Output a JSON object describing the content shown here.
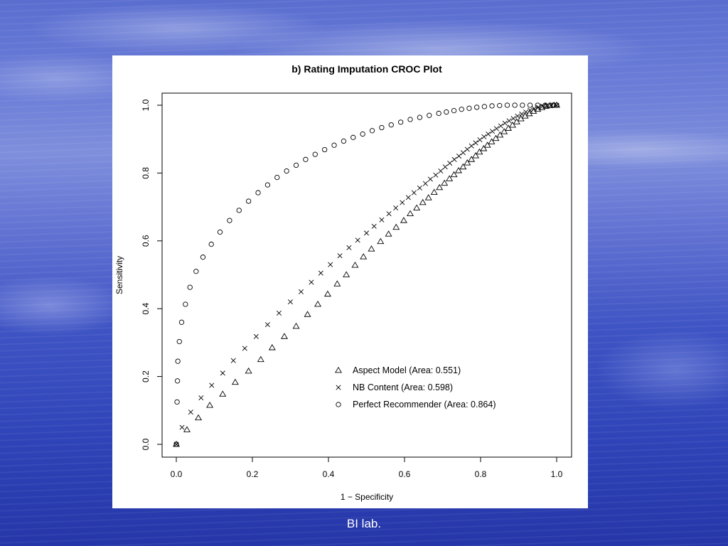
{
  "caption": "BI lab.",
  "colors": {
    "ink": "#000000",
    "panel": "#ffffff"
  },
  "chart_data": {
    "type": "scatter",
    "title": "b) Rating Imputation CROC Plot",
    "xlabel": "1 − Specificity",
    "ylabel": "Sensitivity",
    "xlim": [
      0,
      1
    ],
    "ylim": [
      0,
      1
    ],
    "x_ticks": [
      "0.0",
      "0.2",
      "0.4",
      "0.6",
      "0.8",
      "1.0"
    ],
    "y_ticks": [
      "0.0",
      "0.2",
      "0.4",
      "0.6",
      "0.8",
      "1.0"
    ],
    "grid": false,
    "legend_position": "bottom-right",
    "series": [
      {
        "name": "Aspect Model (Area: 0.551)",
        "marker": "triangle",
        "points": [
          [
            0,
            0
          ],
          [
            0.028,
            0.043
          ],
          [
            0.058,
            0.078
          ],
          [
            0.088,
            0.115
          ],
          [
            0.122,
            0.148
          ],
          [
            0.155,
            0.183
          ],
          [
            0.19,
            0.216
          ],
          [
            0.222,
            0.25
          ],
          [
            0.252,
            0.285
          ],
          [
            0.284,
            0.318
          ],
          [
            0.315,
            0.348
          ],
          [
            0.345,
            0.383
          ],
          [
            0.372,
            0.413
          ],
          [
            0.398,
            0.443
          ],
          [
            0.423,
            0.473
          ],
          [
            0.447,
            0.5
          ],
          [
            0.47,
            0.528
          ],
          [
            0.492,
            0.553
          ],
          [
            0.513,
            0.576
          ],
          [
            0.537,
            0.598
          ],
          [
            0.558,
            0.62
          ],
          [
            0.578,
            0.64
          ],
          [
            0.598,
            0.66
          ],
          [
            0.615,
            0.68
          ],
          [
            0.632,
            0.697
          ],
          [
            0.648,
            0.713
          ],
          [
            0.663,
            0.727
          ],
          [
            0.678,
            0.743
          ],
          [
            0.692,
            0.757
          ],
          [
            0.705,
            0.77
          ],
          [
            0.718,
            0.783
          ],
          [
            0.73,
            0.795
          ],
          [
            0.742,
            0.807
          ],
          [
            0.754,
            0.818
          ],
          [
            0.765,
            0.83
          ],
          [
            0.776,
            0.84
          ],
          [
            0.787,
            0.851
          ],
          [
            0.797,
            0.862
          ],
          [
            0.808,
            0.872
          ],
          [
            0.818,
            0.882
          ],
          [
            0.829,
            0.892
          ],
          [
            0.84,
            0.902
          ],
          [
            0.851,
            0.912
          ],
          [
            0.862,
            0.922
          ],
          [
            0.873,
            0.932
          ],
          [
            0.884,
            0.941
          ],
          [
            0.895,
            0.951
          ],
          [
            0.906,
            0.96
          ],
          [
            0.917,
            0.968
          ],
          [
            0.928,
            0.975
          ],
          [
            0.939,
            0.982
          ],
          [
            0.95,
            0.988
          ],
          [
            0.961,
            0.993
          ],
          [
            0.972,
            0.997
          ],
          [
            0.983,
            0.999
          ],
          [
            0.993,
            1.0
          ],
          [
            1.0,
            1.0
          ]
        ]
      },
      {
        "name": "NB Content (Area: 0.598)",
        "marker": "cross",
        "points": [
          [
            0,
            0
          ],
          [
            0.015,
            0.05
          ],
          [
            0.038,
            0.095
          ],
          [
            0.065,
            0.137
          ],
          [
            0.093,
            0.174
          ],
          [
            0.122,
            0.21
          ],
          [
            0.15,
            0.247
          ],
          [
            0.18,
            0.283
          ],
          [
            0.21,
            0.318
          ],
          [
            0.24,
            0.353
          ],
          [
            0.27,
            0.387
          ],
          [
            0.3,
            0.42
          ],
          [
            0.328,
            0.45
          ],
          [
            0.355,
            0.478
          ],
          [
            0.38,
            0.505
          ],
          [
            0.405,
            0.53
          ],
          [
            0.43,
            0.556
          ],
          [
            0.454,
            0.58
          ],
          [
            0.477,
            0.602
          ],
          [
            0.5,
            0.623
          ],
          [
            0.52,
            0.643
          ],
          [
            0.54,
            0.662
          ],
          [
            0.559,
            0.68
          ],
          [
            0.577,
            0.697
          ],
          [
            0.594,
            0.713
          ],
          [
            0.61,
            0.728
          ],
          [
            0.625,
            0.742
          ],
          [
            0.64,
            0.756
          ],
          [
            0.655,
            0.769
          ],
          [
            0.668,
            0.782
          ],
          [
            0.682,
            0.794
          ],
          [
            0.695,
            0.806
          ],
          [
            0.707,
            0.818
          ],
          [
            0.719,
            0.829
          ],
          [
            0.731,
            0.84
          ],
          [
            0.743,
            0.85
          ],
          [
            0.754,
            0.86
          ],
          [
            0.765,
            0.87
          ],
          [
            0.776,
            0.88
          ],
          [
            0.787,
            0.889
          ],
          [
            0.798,
            0.898
          ],
          [
            0.809,
            0.907
          ],
          [
            0.82,
            0.915
          ],
          [
            0.831,
            0.923
          ],
          [
            0.842,
            0.931
          ],
          [
            0.853,
            0.939
          ],
          [
            0.864,
            0.947
          ],
          [
            0.875,
            0.954
          ],
          [
            0.886,
            0.961
          ],
          [
            0.897,
            0.968
          ],
          [
            0.908,
            0.974
          ],
          [
            0.919,
            0.98
          ],
          [
            0.93,
            0.985
          ],
          [
            0.941,
            0.99
          ],
          [
            0.952,
            0.994
          ],
          [
            0.963,
            0.997
          ],
          [
            0.974,
            0.999
          ],
          [
            0.985,
            1.0
          ],
          [
            1.0,
            1.0
          ]
        ]
      },
      {
        "name": "Perfect Recommender (Area: 0.864)",
        "marker": "circle",
        "points": [
          [
            0,
            0
          ],
          [
            0.002,
            0.125
          ],
          [
            0.003,
            0.187
          ],
          [
            0.004,
            0.245
          ],
          [
            0.008,
            0.303
          ],
          [
            0.014,
            0.36
          ],
          [
            0.024,
            0.413
          ],
          [
            0.036,
            0.463
          ],
          [
            0.052,
            0.51
          ],
          [
            0.07,
            0.552
          ],
          [
            0.092,
            0.59
          ],
          [
            0.115,
            0.626
          ],
          [
            0.14,
            0.66
          ],
          [
            0.165,
            0.69
          ],
          [
            0.19,
            0.717
          ],
          [
            0.215,
            0.742
          ],
          [
            0.24,
            0.765
          ],
          [
            0.265,
            0.787
          ],
          [
            0.29,
            0.806
          ],
          [
            0.315,
            0.823
          ],
          [
            0.34,
            0.84
          ],
          [
            0.365,
            0.855
          ],
          [
            0.39,
            0.869
          ],
          [
            0.415,
            0.882
          ],
          [
            0.44,
            0.894
          ],
          [
            0.465,
            0.905
          ],
          [
            0.49,
            0.915
          ],
          [
            0.515,
            0.925
          ],
          [
            0.54,
            0.934
          ],
          [
            0.565,
            0.942
          ],
          [
            0.59,
            0.95
          ],
          [
            0.615,
            0.958
          ],
          [
            0.64,
            0.964
          ],
          [
            0.665,
            0.97
          ],
          [
            0.69,
            0.976
          ],
          [
            0.71,
            0.98
          ],
          [
            0.73,
            0.984
          ],
          [
            0.75,
            0.988
          ],
          [
            0.77,
            0.991
          ],
          [
            0.79,
            0.994
          ],
          [
            0.81,
            0.996
          ],
          [
            0.83,
            0.998
          ],
          [
            0.85,
            0.999
          ],
          [
            0.87,
            1.0
          ],
          [
            0.89,
            1.0
          ],
          [
            0.91,
            1.0
          ],
          [
            0.93,
            1.0
          ],
          [
            0.95,
            1.0
          ],
          [
            0.97,
            1.0
          ],
          [
            0.99,
            1.0
          ],
          [
            1.0,
            1.0
          ]
        ]
      }
    ]
  }
}
